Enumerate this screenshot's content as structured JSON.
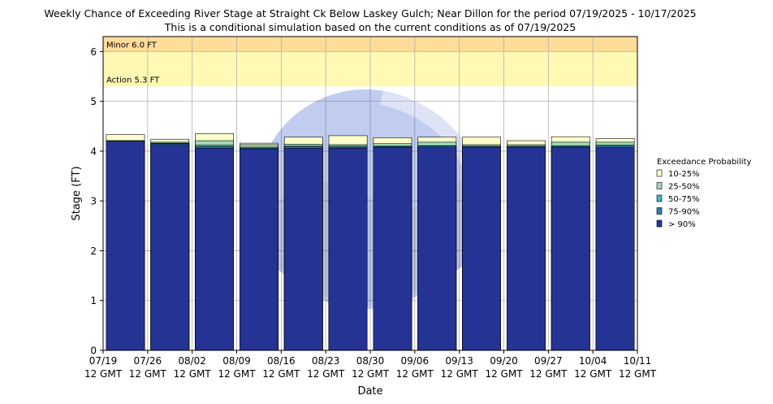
{
  "chart_data": {
    "type": "bar",
    "title": "Weekly Chance of Exceeding River Stage at Straight Ck Below Laskey Gulch; Near Dillon for the period 07/19/2025 - 10/17/2025",
    "subtitle": "This is a conditional simulation based on the current conditions as of 07/19/2025",
    "xlabel": "Date",
    "ylabel": "Stage (FT)",
    "ylim": [
      0,
      6.3
    ],
    "yticks": [
      "0",
      "1",
      "2",
      "3",
      "4",
      "5",
      "6"
    ],
    "grid": true,
    "x_tick_labels": [
      [
        "07/19",
        "12 GMT"
      ],
      [
        "07/26",
        "12 GMT"
      ],
      [
        "08/02",
        "12 GMT"
      ],
      [
        "08/09",
        "12 GMT"
      ],
      [
        "08/16",
        "12 GMT"
      ],
      [
        "08/23",
        "12 GMT"
      ],
      [
        "08/30",
        "12 GMT"
      ],
      [
        "09/06",
        "12 GMT"
      ],
      [
        "09/13",
        "12 GMT"
      ],
      [
        "09/20",
        "12 GMT"
      ],
      [
        "09/27",
        "12 GMT"
      ],
      [
        "10/04",
        "12 GMT"
      ],
      [
        "10/11",
        "12 GMT"
      ]
    ],
    "thresholds": [
      {
        "label": "Minor 6.0 FT",
        "value": 6.0,
        "color": "#ffdd99"
      },
      {
        "label": "Action 5.3 FT",
        "value": 5.3,
        "color": "#fff9b3"
      }
    ],
    "legend": {
      "title": "Exceedance Probability",
      "placement": "right"
    },
    "series": [
      {
        "name": "10-25%",
        "color": "#ffffcc",
        "values": [
          4.33,
          4.24,
          4.35,
          4.16,
          4.28,
          4.31,
          4.27,
          4.28,
          4.28,
          4.21,
          4.29,
          4.25
        ]
      },
      {
        "name": "25-50%",
        "color": "#a1dab4",
        "values": [
          4.21,
          4.18,
          4.21,
          4.13,
          4.14,
          4.13,
          4.15,
          4.18,
          4.13,
          4.13,
          4.18,
          4.18
        ]
      },
      {
        "name": "50-75%",
        "color": "#41b6c4",
        "values": [
          4.21,
          4.16,
          4.12,
          4.08,
          4.1,
          4.1,
          4.1,
          4.11,
          4.1,
          4.1,
          4.11,
          4.12
        ]
      },
      {
        "name": "75-90%",
        "color": "#2c7fb8",
        "values": [
          4.2,
          4.15,
          4.09,
          4.06,
          4.09,
          4.08,
          4.09,
          4.1,
          4.09,
          4.09,
          4.09,
          4.1
        ]
      },
      {
        "name": "> 90%",
        "color": "#253494",
        "values": [
          4.2,
          4.13,
          4.06,
          4.04,
          4.06,
          4.06,
          4.07,
          4.07,
          4.07,
          4.07,
          4.07,
          4.07
        ]
      }
    ]
  }
}
